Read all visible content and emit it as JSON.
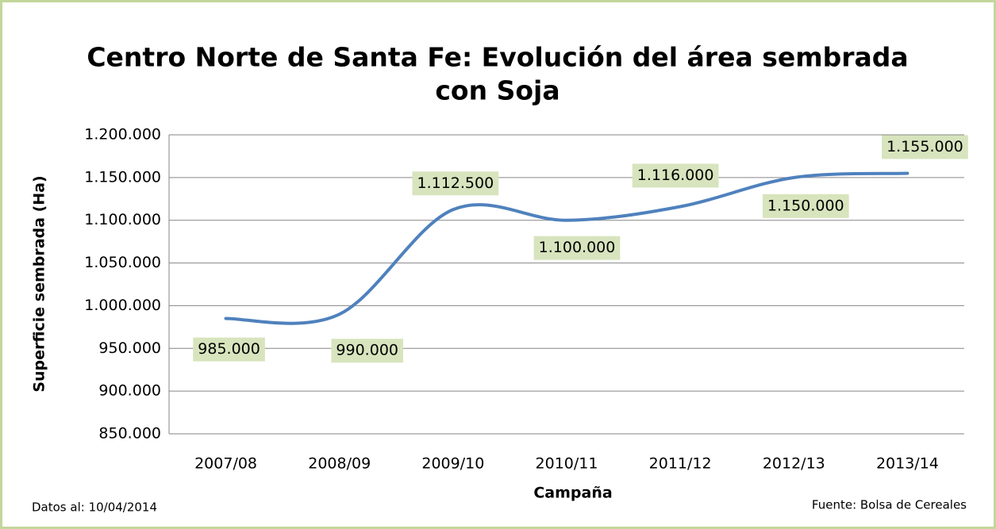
{
  "chart_data": {
    "type": "line",
    "title": [
      "Centro Norte de Santa Fe: Evolución del área sembrada",
      "con Soja"
    ],
    "y_label": "Superficie sembrada (Ha)",
    "x_label": "Campaña",
    "footnote_left": "Datos al: 10/04/2014",
    "footnote_right": "Fuente: Bolsa de Cereales",
    "categories": [
      "2007/08",
      "2008/09",
      "2009/10",
      "2010/11",
      "2011/12",
      "2012/13",
      "2013/14"
    ],
    "series": [
      {
        "name": "Superficie sembrada",
        "color": "#4f81bd",
        "values": [
          985000,
          990000,
          1112500,
          1100000,
          1116000,
          1150000,
          1155000
        ],
        "value_labels": [
          "985.000",
          "990.000",
          "1.112.500",
          "1.100.000",
          "1.116.000",
          "1.150.000",
          "1.155.000"
        ]
      }
    ],
    "ylim": [
      850000,
      1200000
    ],
    "yticks": [
      {
        "value": 850000,
        "label": "850.000"
      },
      {
        "value": 900000,
        "label": "900.000"
      },
      {
        "value": 950000,
        "label": "950.000"
      },
      {
        "value": 1000000,
        "label": "1.000.000"
      },
      {
        "value": 1050000,
        "label": "1.050.000"
      },
      {
        "value": 1100000,
        "label": "1.100.000"
      },
      {
        "value": 1150000,
        "label": "1.150.000"
      },
      {
        "value": 1200000,
        "label": "1.200.000"
      }
    ],
    "grid": true
  }
}
